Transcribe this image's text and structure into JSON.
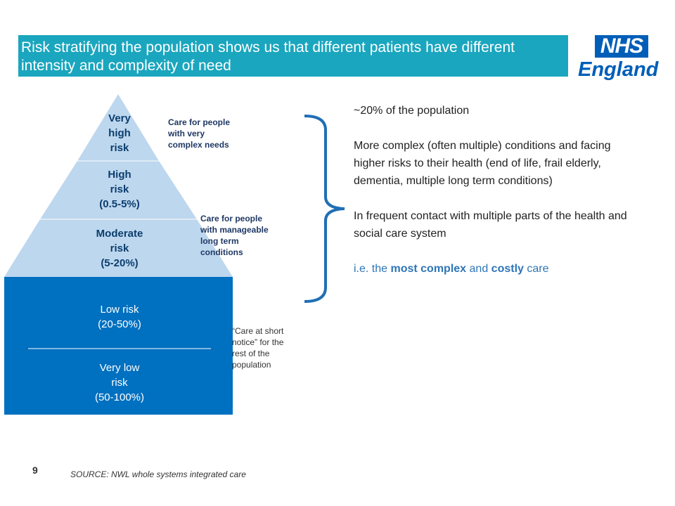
{
  "title": "Risk stratifying the population shows us that different patients have different intensity and complexity of need",
  "logo": {
    "nhs": "NHS",
    "region": "England"
  },
  "colors": {
    "title_bg": "#1aa6be",
    "light_tier": "#bdd7ee",
    "dark_tier": "#0070c0",
    "accent_text": "#2e75b6",
    "nhs_blue": "#005eb8"
  },
  "pyramid": {
    "tiers": [
      {
        "line1": "Very",
        "line2": "high",
        "line3": "risk"
      },
      {
        "line1": "High",
        "line2": "risk",
        "line3": "(0.5-5%)"
      },
      {
        "line1": "Moderate",
        "line2": "risk",
        "line3": "(5-20%)"
      },
      {
        "line1": "Low risk",
        "line2": "(20-50%)"
      },
      {
        "line1": "Very low",
        "line2": "risk",
        "line3": "(50-100%)"
      }
    ]
  },
  "captions": {
    "very_complex": {
      "line1": "Care for people",
      "line2": "with very",
      "line3": "complex needs"
    },
    "manageable": {
      "line1": "Care for people",
      "line2": "with manageable",
      "line3": "long term",
      "line4": "conditions"
    },
    "short_notice": {
      "line1": "“Care at short",
      "line2": "notice” for the",
      "line3": "rest of the",
      "line4": "population"
    }
  },
  "side_text": {
    "line1": "~20% of the population",
    "para2": "More complex (often multiple) conditions and facing higher risks to their health (end of life, frail elderly, dementia, multiple long term conditions)",
    "para3": "In frequent contact with multiple parts of the health and social care system",
    "para4_a": "i.e. the ",
    "para4_b": "most complex",
    "para4_c": " and ",
    "para4_d": "costly",
    "para4_e": " care"
  },
  "page_number": "9",
  "source": "SOURCE:  NWL whole systems integrated care"
}
